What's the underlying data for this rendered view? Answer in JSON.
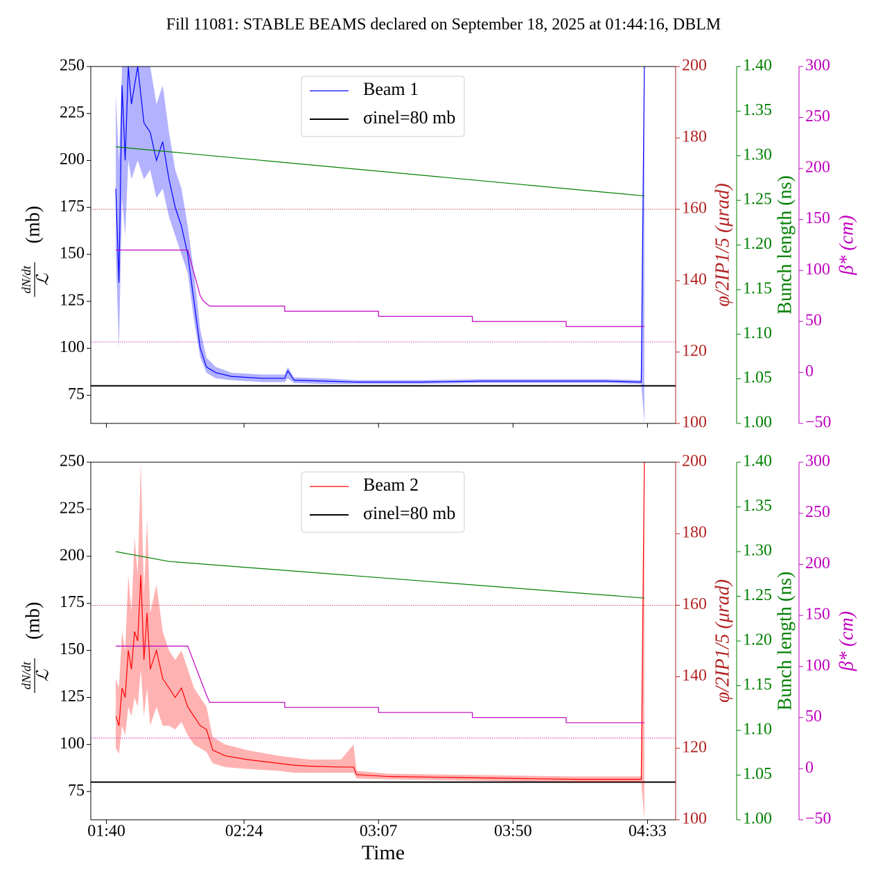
{
  "chart_data": [
    {
      "type": "line",
      "title": "Fill 11081: STABLE BEAMS declared on September 18, 2025 at 01:44:16, DBLM",
      "ylabel": {
        "numerator": "dN/dt",
        "denominator": "ℒ",
        "unit": "(mb)"
      },
      "y2label": "φ/2IP1/5 (μrad)",
      "y3label": "Bunch length (ns)",
      "y4label": "β* (cm)",
      "xlim": [
        "01:35",
        "04:42"
      ],
      "xticks": [
        "01:40",
        "02:24",
        "03:07",
        "03:50",
        "04:33"
      ],
      "ylim": [
        60,
        250
      ],
      "yticks": [
        75,
        100,
        125,
        150,
        175,
        200,
        225,
        250
      ],
      "y2lim": [
        100,
        200
      ],
      "y2ticks": [
        100,
        120,
        140,
        160,
        180,
        200
      ],
      "y2color": "#b22222",
      "y3lim": [
        1.0,
        1.4
      ],
      "y3ticks": [
        {
          "value": 1.0,
          "label": "1.00"
        },
        {
          "value": 1.05,
          "label": "1.05"
        },
        {
          "value": 1.1,
          "label": "1.10"
        },
        {
          "value": 1.15,
          "label": "1.15"
        },
        {
          "value": 1.2,
          "label": "1.20"
        },
        {
          "value": 1.25,
          "label": "1.25"
        },
        {
          "value": 1.3,
          "label": "1.30"
        },
        {
          "value": 1.35,
          "label": "1.35"
        },
        {
          "value": 1.4,
          "label": "1.40"
        }
      ],
      "y3color": "#008000",
      "y4lim": [
        -50,
        300
      ],
      "y4ticks": [
        {
          "value": -50,
          "label": "−50"
        },
        0,
        50,
        100,
        150,
        200,
        250,
        300
      ],
      "y4color": "#bf00bf",
      "legend": "upper center",
      "series": [
        {
          "name": "Beam 1",
          "color": "#0000ff",
          "band_color": "#0000ff",
          "axis": "y",
          "x": [
            "01:43",
            "01:44",
            "01:45",
            "01:46",
            "01:47",
            "01:48",
            "01:50",
            "01:52",
            "01:54",
            "01:56",
            "01:58",
            "02:00",
            "02:02",
            "02:04",
            "02:06",
            "02:08",
            "02:10",
            "02:12",
            "02:15",
            "02:20",
            "02:30",
            "02:37",
            "02:38",
            "02:40",
            "02:50",
            "03:00",
            "03:20",
            "03:40",
            "04:00",
            "04:20",
            "04:31",
            "04:32"
          ],
          "values": [
            185,
            135,
            240,
            200,
            250,
            230,
            250,
            220,
            215,
            200,
            210,
            190,
            175,
            165,
            150,
            125,
            100,
            90,
            87,
            85,
            84,
            84,
            88,
            83,
            82.5,
            82,
            82,
            82.5,
            82.5,
            82.5,
            82,
            250
          ],
          "lower": [
            150,
            100,
            180,
            160,
            200,
            190,
            200,
            190,
            195,
            180,
            185,
            170,
            160,
            150,
            140,
            115,
            95,
            87,
            84,
            83,
            82,
            82,
            84,
            81.5,
            81,
            81,
            81,
            81.5,
            81.5,
            81.5,
            81,
            60
          ],
          "upper": [
            235,
            200,
            250,
            250,
            250,
            250,
            250,
            250,
            250,
            230,
            240,
            215,
            195,
            185,
            165,
            140,
            110,
            95,
            90,
            87,
            86,
            86,
            90,
            84.5,
            84,
            83,
            83,
            83.5,
            83.5,
            83.5,
            83,
            250
          ]
        },
        {
          "color": "#008000",
          "axis": "y3",
          "x": [
            "01:43",
            "04:32"
          ],
          "values": [
            1.31,
            1.255
          ]
        },
        {
          "color": "#bf00bf",
          "axis": "y4",
          "x": [
            "01:43",
            "02:06",
            "02:10",
            "02:11",
            "02:13",
            "02:37",
            "02:37",
            "03:07",
            "03:07",
            "03:37",
            "03:37",
            "04:07",
            "04:07",
            "04:32"
          ],
          "values": [
            120,
            120,
            75,
            70,
            65,
            65,
            60,
            60,
            55,
            55,
            50,
            50,
            45,
            45
          ]
        }
      ],
      "hlines": [
        {
          "name": "σinel=80 mb",
          "value": 80,
          "axis": "y",
          "color": "#000000",
          "style": "solid"
        },
        {
          "value": 160,
          "axis": "y2",
          "color": "#b22222",
          "style": "dotted"
        },
        {
          "value": 30,
          "axis": "y4",
          "color": "#bf00bf",
          "style": "dotted"
        }
      ]
    },
    {
      "type": "line",
      "xlabel": "Time",
      "ylabel": {
        "numerator": "dN/dt",
        "denominator": "ℒ",
        "unit": "(mb)"
      },
      "y2label": "φ/2IP1/5 (μrad)",
      "y3label": "Bunch length (ns)",
      "y4label": "β* (cm)",
      "xlim": [
        "01:35",
        "04:42"
      ],
      "xticks": [
        "01:40",
        "02:24",
        "03:07",
        "03:50",
        "04:33"
      ],
      "ylim": [
        60,
        250
      ],
      "yticks": [
        75,
        100,
        125,
        150,
        175,
        200,
        225,
        250
      ],
      "y2lim": [
        100,
        200
      ],
      "y2ticks": [
        100,
        120,
        140,
        160,
        180,
        200
      ],
      "y2color": "#b22222",
      "y3lim": [
        1.0,
        1.4
      ],
      "y3ticks": [
        {
          "value": 1.0,
          "label": "1.00"
        },
        {
          "value": 1.05,
          "label": "1.05"
        },
        {
          "value": 1.1,
          "label": "1.10"
        },
        {
          "value": 1.15,
          "label": "1.15"
        },
        {
          "value": 1.2,
          "label": "1.20"
        },
        {
          "value": 1.25,
          "label": "1.25"
        },
        {
          "value": 1.3,
          "label": "1.30"
        },
        {
          "value": 1.35,
          "label": "1.35"
        },
        {
          "value": 1.4,
          "label": "1.40"
        }
      ],
      "y3color": "#008000",
      "y4lim": [
        -50,
        300
      ],
      "y4ticks": [
        {
          "value": -50,
          "label": "−50"
        },
        0,
        50,
        100,
        150,
        200,
        250,
        300
      ],
      "y4color": "#bf00bf",
      "legend": "upper center",
      "series": [
        {
          "name": "Beam 2",
          "color": "#ff0000",
          "band_color": "#ff0000",
          "axis": "y",
          "x": [
            "01:43",
            "01:44",
            "01:45",
            "01:46",
            "01:47",
            "01:48",
            "01:49",
            "01:50",
            "01:51",
            "01:52",
            "01:53",
            "01:54",
            "01:56",
            "01:58",
            "02:00",
            "02:02",
            "02:04",
            "02:06",
            "02:08",
            "02:10",
            "02:12",
            "02:14",
            "02:18",
            "02:25",
            "02:35",
            "02:40",
            "02:45",
            "02:55",
            "02:59",
            "03:00",
            "03:10",
            "03:30",
            "03:50",
            "04:10",
            "04:31",
            "04:32"
          ],
          "values": [
            115,
            110,
            130,
            125,
            150,
            140,
            160,
            155,
            190,
            145,
            170,
            140,
            150,
            135,
            130,
            125,
            130,
            120,
            115,
            110,
            108,
            97,
            94,
            92,
            90,
            89,
            88.5,
            88,
            88,
            84,
            83,
            82.5,
            82,
            81.5,
            81.5,
            250
          ],
          "lower": [
            98,
            95,
            110,
            105,
            120,
            115,
            125,
            120,
            140,
            115,
            130,
            110,
            120,
            110,
            110,
            108,
            112,
            105,
            100,
            98,
            96,
            90,
            88,
            87,
            86,
            85,
            85,
            85,
            85,
            82,
            81.5,
            81,
            80.5,
            80,
            80,
            60
          ],
          "upper": [
            135,
            130,
            160,
            150,
            190,
            170,
            210,
            190,
            250,
            180,
            220,
            170,
            185,
            160,
            150,
            145,
            150,
            140,
            130,
            125,
            120,
            104,
            100,
            97,
            94,
            93,
            92,
            92,
            100,
            86,
            84.5,
            84,
            83.5,
            83,
            83,
            250
          ]
        },
        {
          "color": "#008000",
          "axis": "y3",
          "x": [
            "01:43",
            "02:00",
            "04:32"
          ],
          "values": [
            1.3,
            1.289,
            1.248
          ]
        },
        {
          "color": "#bf00bf",
          "axis": "y4",
          "x": [
            "01:43",
            "02:06",
            "02:12",
            "02:13",
            "02:37",
            "02:37",
            "03:07",
            "03:07",
            "03:37",
            "03:37",
            "04:07",
            "04:07",
            "04:32"
          ],
          "values": [
            120,
            120,
            72,
            65,
            65,
            60,
            60,
            55,
            55,
            50,
            50,
            45,
            45
          ]
        }
      ],
      "hlines": [
        {
          "name": "σinel=80 mb",
          "value": 80,
          "axis": "y",
          "color": "#000000",
          "style": "solid"
        },
        {
          "value": 160,
          "axis": "y2",
          "color": "#b22222",
          "style": "dotted"
        },
        {
          "value": 30,
          "axis": "y4",
          "color": "#bf00bf",
          "style": "dotted"
        }
      ]
    }
  ]
}
